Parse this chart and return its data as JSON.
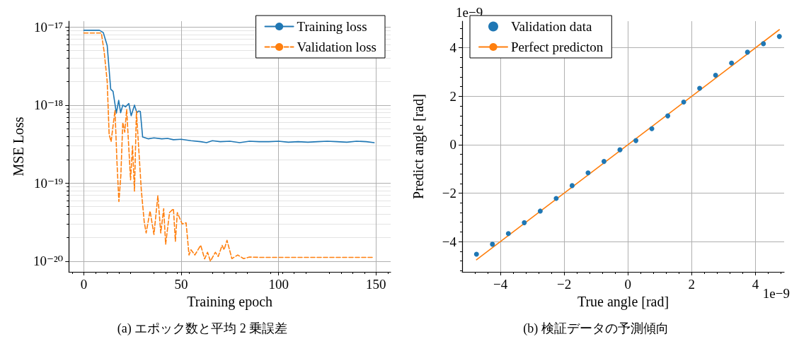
{
  "chart_data": [
    {
      "type": "line",
      "title": "(a) エポック数と平均 2 乗誤差",
      "xlabel": "Training epoch",
      "ylabel": "MSE Loss",
      "log": "y",
      "grid": true,
      "legend": "top right",
      "marker": "none",
      "xlim": [
        -7.7,
        157.5
      ],
      "xticks": [
        0,
        50,
        100,
        150
      ],
      "ylim": [
        7.3e-21,
        1.19e-17
      ],
      "yticks": [
        {
          "value": 1e-20,
          "label": "10⁻²⁰"
        },
        {
          "value": 1e-19,
          "label": "10⁻¹⁹"
        },
        {
          "value": 1e-18,
          "label": "10⁻¹⁸"
        },
        {
          "value": 1e-17,
          "label": "10⁻¹⁷"
        }
      ],
      "series": [
        {
          "name": "Training loss",
          "color": "#1f77b4",
          "line_style": "solid",
          "x": [
            0,
            8,
            10,
            12,
            13.8,
            15,
            16.7,
            17.9,
            18.9,
            20,
            21.4,
            23.1,
            24.3,
            26,
            27.2,
            28.1,
            29,
            30.2,
            33,
            36,
            40,
            43,
            46,
            50,
            55,
            60,
            63,
            66,
            70,
            75,
            80,
            85,
            90,
            95,
            100,
            105,
            110,
            115,
            120,
            125,
            130,
            135,
            140,
            145,
            149
          ],
          "values": [
            9.1e-18,
            9.1e-18,
            8.5e-18,
            5.8e-18,
            1.6e-18,
            1.5e-18,
            7.9e-19,
            1.15e-18,
            8e-19,
            1e-18,
            9.5e-19,
            1.05e-18,
            7.3e-19,
            1e-18,
            8e-19,
            8.4e-19,
            8.3e-19,
            3.9e-19,
            3.7e-19,
            3.8e-19,
            3.7e-19,
            3.75e-19,
            3.6e-19,
            3.65e-19,
            3.5e-19,
            3.4e-19,
            3.3e-19,
            3.5e-19,
            3.4e-19,
            3.45e-19,
            3.3e-19,
            3.45e-19,
            3.4e-19,
            3.4e-19,
            3.45e-19,
            3.35e-19,
            3.4e-19,
            3.35e-19,
            3.4e-19,
            3.45e-19,
            3.4e-19,
            3.35e-19,
            3.45e-19,
            3.4e-19,
            3.3e-19
          ]
        },
        {
          "name": "Validation loss",
          "color": "#ff7f0e",
          "line_style": "dashed",
          "x": [
            0,
            9,
            10.5,
            12,
            13,
            14,
            16,
            17,
            18,
            19,
            20,
            21,
            22,
            24,
            25,
            26,
            27,
            29.5,
            31,
            32,
            34,
            36,
            38,
            39.5,
            41,
            42,
            44,
            46,
            47,
            48,
            50.5,
            52.5,
            54,
            55,
            57,
            60,
            62,
            63.5,
            65,
            67.5,
            69,
            71,
            72,
            73.5,
            76,
            79,
            82,
            85,
            90,
            149
          ],
          "values": [
            8.4e-18,
            8.4e-18,
            4.7e-18,
            2e-18,
            4.2e-19,
            3.4e-19,
            8.6e-19,
            1.9e-19,
            5.8e-20,
            1.25e-19,
            6e-19,
            4.5e-19,
            8.8e-19,
            1.1e-19,
            3e-19,
            7.9e-20,
            8.3e-19,
            8.2e-20,
            3.2e-20,
            2.3e-20,
            4.4e-20,
            2.2e-20,
            6.9e-20,
            2.3e-20,
            4.7e-20,
            1.65e-20,
            4.2e-20,
            4.7e-20,
            1.8e-20,
            4.2e-20,
            3e-20,
            3.1e-20,
            1.2e-20,
            1.4e-20,
            1.2e-20,
            1.6e-20,
            1.07e-20,
            1.3e-20,
            1e-20,
            1.3e-20,
            1.15e-20,
            1.6e-20,
            1.4e-20,
            1.85e-20,
            1.08e-20,
            1.2e-20,
            1.08e-20,
            1.13e-20,
            1.12e-20,
            1.12e-20
          ]
        }
      ]
    },
    {
      "type": "scatter",
      "title": "(b) 検証データの予測傾向",
      "xlabel": "True angle [rad]",
      "ylabel": "Predict angle [rad]",
      "grid": true,
      "legend": "top left",
      "marker": "circle",
      "annotations": [
        "1e−9",
        "1e−9"
      ],
      "xlim": [
        -5.2,
        4.9
      ],
      "xticks": [
        {
          "value": -4,
          "label": "−4"
        },
        {
          "value": -2,
          "label": "−2"
        },
        0,
        2,
        4
      ],
      "ylim": [
        -5.25,
        5.1
      ],
      "yticks": [
        {
          "value": -4,
          "label": "−4"
        },
        {
          "value": -2,
          "label": "−2"
        },
        0,
        2,
        4
      ],
      "series": [
        {
          "name": "Validation data",
          "color": "#1f77b4",
          "x": [
            -4.75,
            -4.25,
            -3.75,
            -3.25,
            -2.75,
            -2.25,
            -1.75,
            -1.25,
            -0.75,
            -0.25,
            0.25,
            0.75,
            1.25,
            1.75,
            2.25,
            2.75,
            3.25,
            3.75,
            4.25,
            4.75
          ],
          "values": [
            -4.52,
            -4.11,
            -3.67,
            -3.22,
            -2.74,
            -2.22,
            -1.69,
            -1.16,
            -0.69,
            -0.21,
            0.17,
            0.66,
            1.19,
            1.76,
            2.33,
            2.87,
            3.37,
            3.82,
            4.17,
            4.47
          ]
        },
        {
          "name": "Perfect predicton",
          "type": "line",
          "color": "#ff7f0e",
          "marker": "none",
          "line_style": "solid",
          "x": [
            -4.75,
            4.75
          ],
          "values": [
            -4.75,
            4.75
          ]
        }
      ]
    }
  ]
}
